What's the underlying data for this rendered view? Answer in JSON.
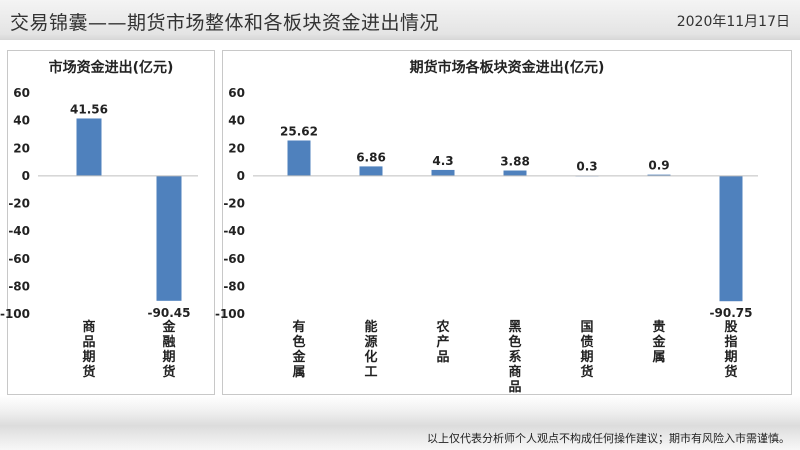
{
  "header": {
    "title": "交易锦囊——期货市场整体和各板块资金进出情况",
    "date": "2020年11月17日"
  },
  "footer": {
    "disclaimer": "以上仅代表分析师个人观点不构成任何操作建议；期市有风险入市需谨慎。"
  },
  "colors": {
    "bar": "#4f81bd"
  },
  "chart_data": [
    {
      "type": "bar",
      "title": "市场资金进出(亿元)",
      "xlabel": "",
      "ylabel": "",
      "ylim": [
        -100,
        60
      ],
      "yticks": [
        60,
        40,
        20,
        0,
        -20,
        -40,
        -60,
        -80,
        -100
      ],
      "categories": [
        "商品期货",
        "金融期货"
      ],
      "values": [
        41.56,
        -90.45
      ],
      "data_labels": [
        "41.56",
        "-90.45"
      ],
      "grid": false,
      "legend": "none"
    },
    {
      "type": "bar",
      "title": "期货市场各板块资金进出(亿元)",
      "xlabel": "",
      "ylabel": "",
      "ylim": [
        -100,
        60
      ],
      "yticks": [
        60,
        40,
        20,
        0,
        -20,
        -40,
        -60,
        -80,
        -100
      ],
      "categories": [
        "有色金属",
        "能源化工",
        "农产品",
        "黑色系商品",
        "国债期货",
        "贵金属",
        "股指期货"
      ],
      "values": [
        25.62,
        6.86,
        4.3,
        3.88,
        0.3,
        0.9,
        -90.75
      ],
      "data_labels": [
        "25.62",
        "6.86",
        "4.3",
        "3.88",
        "0.3",
        "0.9",
        "-90.75"
      ],
      "grid": false,
      "legend": "none"
    }
  ]
}
